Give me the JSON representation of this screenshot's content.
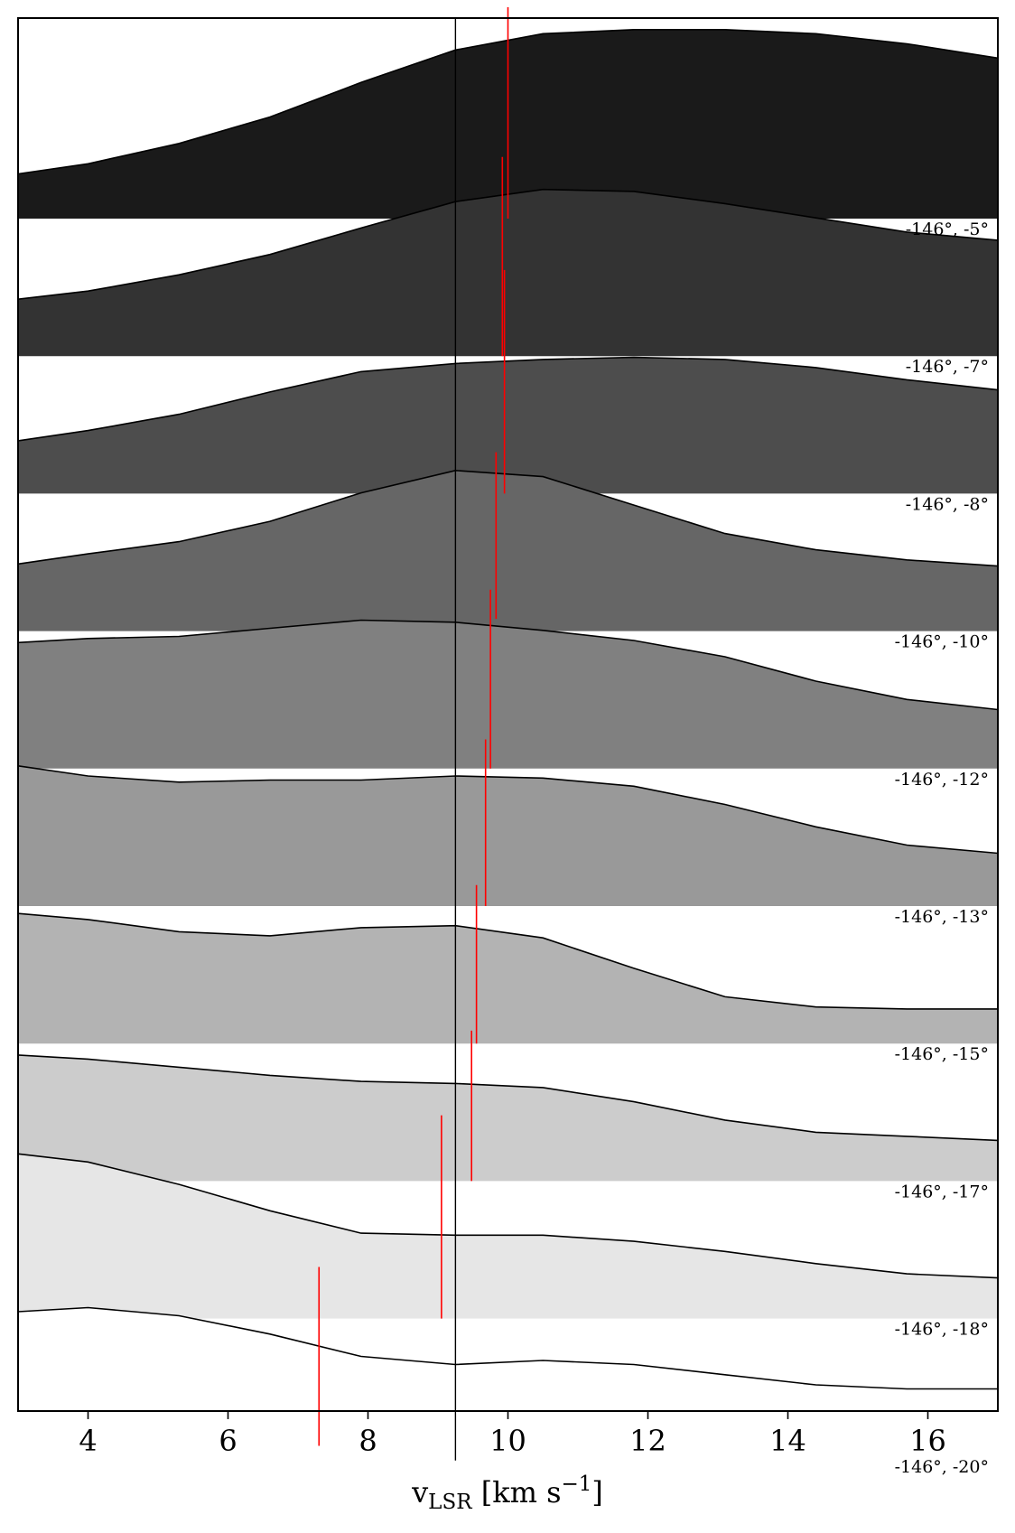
{
  "chart_data": {
    "type": "area",
    "xlabel": "v_LSR [km s^-1]",
    "xlabel_parts": {
      "main": "v",
      "sub": "LSR",
      "units": " [km s",
      "sup": "−1",
      "close": "]"
    },
    "xlim": [
      3.0,
      17.0
    ],
    "xticks": [
      4,
      6,
      8,
      10,
      12,
      14,
      16
    ],
    "reference_velocity": 9.25,
    "x": [
      3.0,
      4.0,
      5.3,
      6.6,
      7.9,
      9.25,
      10.5,
      11.8,
      13.1,
      14.4,
      15.7,
      17.0
    ],
    "series": [
      {
        "name": "-146°, -5°",
        "fill": "#1a1a1a",
        "peak_velocity": 10.0,
        "values": [
          0.22,
          0.27,
          0.37,
          0.5,
          0.67,
          0.83,
          0.91,
          0.93,
          0.93,
          0.91,
          0.86,
          0.79
        ],
        "marker_range": [
          0.0,
          1.04
        ]
      },
      {
        "name": "-146°, -7°",
        "fill": "#333333",
        "peak_velocity": 9.92,
        "values": [
          0.28,
          0.32,
          0.4,
          0.5,
          0.63,
          0.76,
          0.82,
          0.81,
          0.75,
          0.68,
          0.61,
          0.57
        ],
        "marker_range": [
          0.0,
          0.98
        ]
      },
      {
        "name": "-146°, -8°",
        "fill": "#4d4d4d",
        "peak_velocity": 9.95,
        "values": [
          0.26,
          0.31,
          0.39,
          0.5,
          0.6,
          0.64,
          0.66,
          0.67,
          0.66,
          0.62,
          0.56,
          0.51
        ],
        "marker_range": [
          0.0,
          1.1
        ]
      },
      {
        "name": "-146°, -10°",
        "fill": "#666666",
        "peak_velocity": 9.83,
        "values": [
          0.33,
          0.38,
          0.44,
          0.54,
          0.68,
          0.79,
          0.76,
          0.62,
          0.48,
          0.4,
          0.35,
          0.32
        ],
        "marker_range": [
          0.06,
          0.88
        ]
      },
      {
        "name": "-146°, -12°",
        "fill": "#808080",
        "peak_velocity": 9.75,
        "values": [
          0.62,
          0.64,
          0.65,
          0.69,
          0.73,
          0.72,
          0.68,
          0.63,
          0.55,
          0.43,
          0.34,
          0.29
        ],
        "marker_range": [
          0.0,
          0.88
        ]
      },
      {
        "name": "-146°, -13°",
        "fill": "#999999",
        "peak_velocity": 9.68,
        "values": [
          0.69,
          0.64,
          0.61,
          0.62,
          0.62,
          0.64,
          0.63,
          0.59,
          0.5,
          0.39,
          0.3,
          0.26
        ],
        "marker_range": [
          0.0,
          0.82
        ]
      },
      {
        "name": "-146°, -15°",
        "fill": "#b3b3b3",
        "peak_velocity": 9.55,
        "values": [
          0.64,
          0.61,
          0.55,
          0.53,
          0.57,
          0.58,
          0.52,
          0.37,
          0.23,
          0.18,
          0.17,
          0.17
        ],
        "marker_range": [
          0.0,
          0.78
        ]
      },
      {
        "name": "-146°, -17°",
        "fill": "#cccccc",
        "peak_velocity": 9.48,
        "values": [
          0.62,
          0.6,
          0.56,
          0.52,
          0.49,
          0.48,
          0.46,
          0.39,
          0.3,
          0.24,
          0.22,
          0.2
        ],
        "marker_range": [
          0.0,
          0.74
        ]
      },
      {
        "name": "-146°, -18°",
        "fill": "#e6e6e6",
        "peak_velocity": 9.05,
        "values": [
          0.81,
          0.77,
          0.66,
          0.53,
          0.42,
          0.41,
          0.41,
          0.38,
          0.33,
          0.27,
          0.22,
          0.2
        ],
        "marker_range": [
          0.0,
          1.0
        ]
      },
      {
        "name": "-146°, -20°",
        "fill": "#ffffff",
        "peak_velocity": 7.3,
        "values": [
          0.71,
          0.73,
          0.69,
          0.6,
          0.49,
          0.45,
          0.47,
          0.45,
          0.4,
          0.35,
          0.33,
          0.33
        ],
        "marker_range": [
          0.05,
          0.93
        ]
      }
    ]
  }
}
